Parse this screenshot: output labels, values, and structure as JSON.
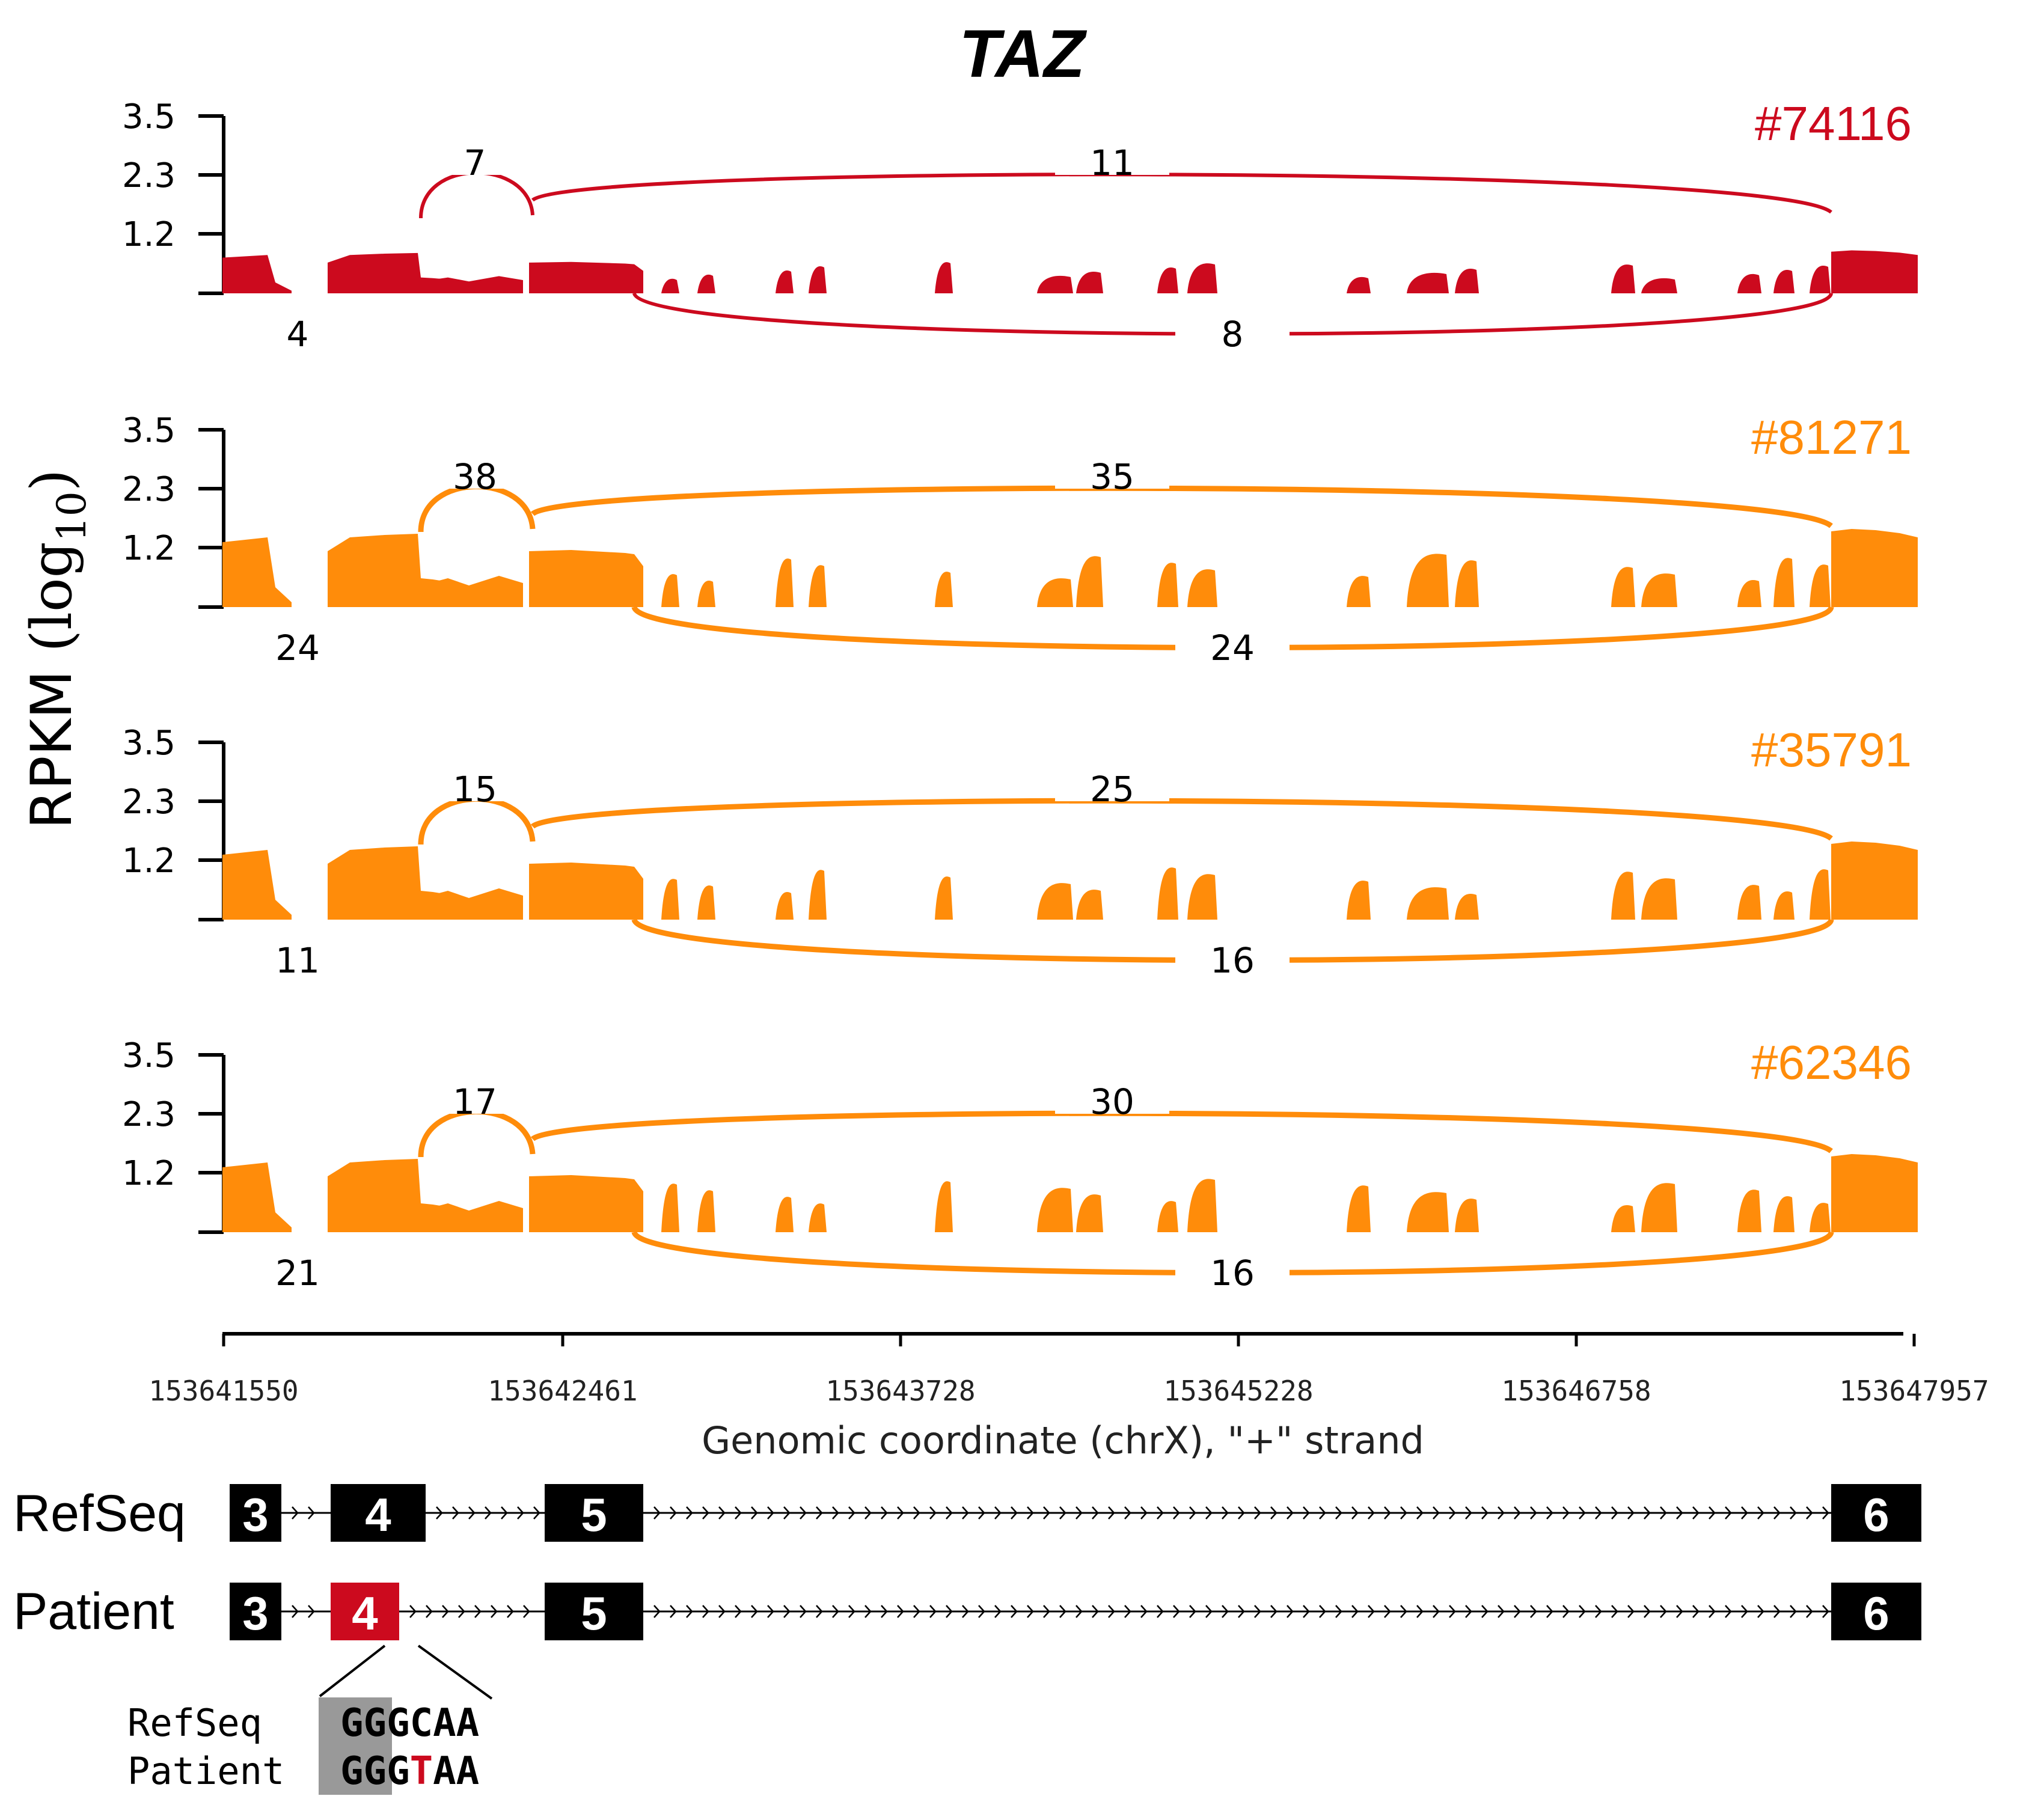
{
  "title": "TAZ",
  "y_axis_label": "RPKM",
  "y_axis_label_math": {
    "base": "log",
    "subscript": "10"
  },
  "y_ticks": [
    "3.5",
    "2.3",
    "1.2"
  ],
  "colors": {
    "affected": "#cc0a1e",
    "control": "#ff8c0a",
    "exon": "#000000",
    "highlight": "#999999"
  },
  "tracks": [
    {
      "sample": "#74116",
      "color": "#cc0a1e",
      "junctions": {
        "exon4_exon5_upper": "7",
        "exon5_exon6_skip_upper": "11",
        "exon3_exon4_lower": "4",
        "exon5_exon6_lower": "8"
      }
    },
    {
      "sample": "#81271",
      "color": "#ff8c0a",
      "junctions": {
        "exon4_exon5_upper": "38",
        "exon5_exon6_skip_upper": "35",
        "exon3_exon4_lower": "24",
        "exon5_exon6_lower": "24"
      }
    },
    {
      "sample": "#35791",
      "color": "#ff8c0a",
      "junctions": {
        "exon4_exon5_upper": "15",
        "exon5_exon6_skip_upper": "25",
        "exon3_exon4_lower": "11",
        "exon5_exon6_lower": "16"
      }
    },
    {
      "sample": "#62346",
      "color": "#ff8c0a",
      "junctions": {
        "exon4_exon5_upper": "17",
        "exon5_exon6_skip_upper": "30",
        "exon3_exon4_lower": "21",
        "exon5_exon6_lower": "16"
      }
    }
  ],
  "x_axis": {
    "ticks": [
      "153641550",
      "153642461",
      "153643728",
      "153645228",
      "153646758",
      "153647957"
    ],
    "label": "Genomic coordinate (chrX), \"+\" strand"
  },
  "transcripts": [
    {
      "name": "RefSeq",
      "exons": [
        "3",
        "4",
        "5",
        "6"
      ]
    },
    {
      "name": "Patient",
      "exons": [
        "3",
        "4",
        "5",
        "6"
      ]
    }
  ],
  "sequence": {
    "refseq_label": "RefSeq",
    "refseq_seq": "GGGCAA",
    "patient_label": "Patient",
    "patient_prefix": "GGG",
    "patient_mutation": "T",
    "patient_suffix": "AA"
  }
}
